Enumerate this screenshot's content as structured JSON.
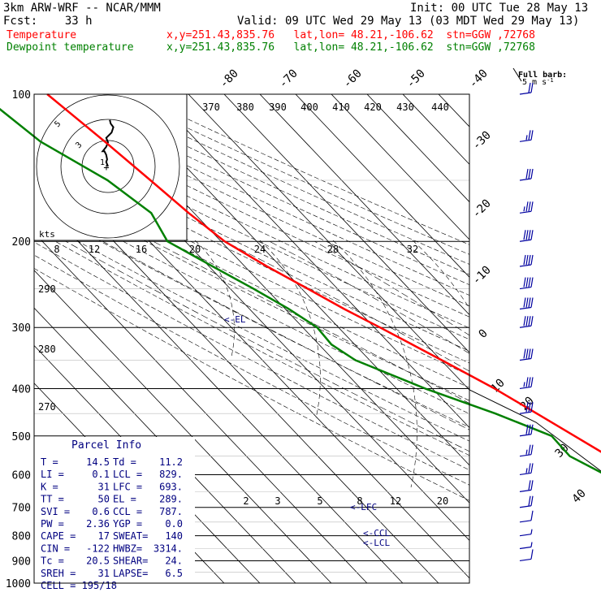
{
  "header": {
    "model": "3km ARW-WRF -- NCAR/MMM",
    "init": "Init: 00 UTC Tue 28 May 13",
    "fcst": "Fcst:    33 h",
    "valid": "Valid: 09 UTC Wed 29 May 13 (03 MDT Wed 29 May 13)",
    "temp_label": "Temperature",
    "temp_info": "x,y=251.43,835.76   lat,lon= 48.21,-106.62  stn=GGW ,72768",
    "dew_label": "Dewpoint temperature",
    "dew_info": "x,y=251.43,835.76   lat,lon= 48.21,-106.62  stn=GGW ,72768"
  },
  "colors": {
    "temperature": "#ff0000",
    "dewpoint": "#008000",
    "axes": "#000000",
    "info": "#000080",
    "wind": "#0000a0"
  },
  "barb_key": {
    "line1": "Full barb:",
    "line2": "5 m s",
    "sup": "-1"
  },
  "parcel_info": {
    "title": "Parcel Info",
    "rows": [
      {
        "l": "T   =",
        "lv": "14.5",
        "r": "Td  =",
        "rv": "11.2"
      },
      {
        "l": "LI  =",
        "lv": "0.1",
        "r": "LCL =",
        "rv": "829."
      },
      {
        "l": "K   =",
        "lv": "31",
        "r": "LFC =",
        "rv": "693."
      },
      {
        "l": "TT  =",
        "lv": "50",
        "r": "EL  =",
        "rv": "289."
      },
      {
        "l": "SVI =",
        "lv": "0.6",
        "r": "CCL =",
        "rv": "787."
      },
      {
        "l": "PW  =",
        "lv": "2.36",
        "r": "YGP =",
        "rv": "0.0"
      },
      {
        "l": "CAPE =",
        "lv": "17",
        "r": "SWEAT=",
        "rv": "140"
      },
      {
        "l": "CIN =",
        "lv": "-122",
        "r": "HWBZ=",
        "rv": "3314."
      },
      {
        "l": "Tc  =",
        "lv": "20.5",
        "r": "SHEAR=",
        "rv": "24."
      },
      {
        "l": "SREH =",
        "lv": "31",
        "r": "LAPSE=",
        "rv": "6.5"
      }
    ],
    "cell": "CELL = 195/18"
  },
  "chart_data": {
    "type": "line",
    "title": "Skew-T log-P sounding",
    "pressure_levels": [
      "100",
      "200",
      "300",
      "400",
      "500",
      "600",
      "700",
      "800",
      "900",
      "1000"
    ],
    "isotherm_labels": [
      "-80",
      "-70",
      "-60",
      "-50",
      "-40",
      "-30",
      "-20",
      "-10",
      "0",
      "10",
      "20",
      "30",
      "40"
    ],
    "theta_labels": [
      "370",
      "380",
      "390",
      "400",
      "410",
      "420",
      "430",
      "440"
    ],
    "theta_left_labels": [
      "290",
      "280",
      "270"
    ],
    "mixing_ratio_labels": [
      "2",
      "3",
      "5",
      "8",
      "12",
      "20"
    ],
    "hodograph": {
      "unit": "kts",
      "ring_labels": [
        "8",
        "12",
        "16",
        "20",
        "24",
        "28",
        "32"
      ],
      "diag_labels": [
        "40",
        "30",
        "20"
      ],
      "inner_labels": [
        "1",
        "3",
        "5"
      ]
    },
    "annotations": {
      "el": "<-EL",
      "lfc": "<-LFC",
      "ccl": "<-CCL",
      "lcl": "<-LCL"
    },
    "series": [
      {
        "name": "Temperature",
        "points": [
          [
            900,
            14.5
          ],
          [
            880,
            14.2
          ],
          [
            850,
            12.5
          ],
          [
            800,
            10.5
          ],
          [
            750,
            9.5
          ],
          [
            700,
            8.4
          ],
          [
            650,
            6.8
          ],
          [
            600,
            4.4
          ],
          [
            550,
            1.3
          ],
          [
            500,
            -2.8
          ],
          [
            450,
            -7.4
          ],
          [
            400,
            -12.6
          ],
          [
            350,
            -19.8
          ],
          [
            300,
            -28.4
          ],
          [
            275,
            -33.5
          ],
          [
            250,
            -38.3
          ],
          [
            225,
            -43.8
          ],
          [
            200,
            -49.0
          ],
          [
            175,
            -51.5
          ],
          [
            150,
            -53.5
          ],
          [
            125,
            -56.0
          ],
          [
            100,
            -59.5
          ]
        ]
      },
      {
        "name": "Dewpoint temperature",
        "points": [
          [
            900,
            11.2
          ],
          [
            850,
            10.1
          ],
          [
            800,
            8.0
          ],
          [
            750,
            3.2
          ],
          [
            700,
            -2.3
          ],
          [
            650,
            -6.5
          ],
          [
            600,
            -4.5
          ],
          [
            550,
            -9.5
          ],
          [
            500,
            -9.2
          ],
          [
            450,
            -19.0
          ],
          [
            400,
            -32.0
          ],
          [
            350,
            -44.0
          ],
          [
            325,
            -46.5
          ],
          [
            300,
            -46.0
          ],
          [
            275,
            -49.0
          ],
          [
            250,
            -53.5
          ],
          [
            225,
            -59.0
          ],
          [
            200,
            -65.0
          ],
          [
            175,
            -62.0
          ],
          [
            150,
            -65.5
          ],
          [
            125,
            -74.0
          ],
          [
            100,
            -78.0
          ]
        ]
      }
    ],
    "hodograph_trace": [
      [
        0,
        0
      ],
      [
        -2,
        -5
      ],
      [
        -1,
        -8
      ],
      [
        -2,
        -13
      ],
      [
        -4,
        -17
      ],
      [
        -6,
        -17
      ],
      [
        -2,
        -22
      ],
      [
        0,
        -27
      ],
      [
        -2,
        -32
      ],
      [
        4,
        -38
      ],
      [
        6,
        -44
      ],
      [
        3,
        -48
      ],
      [
        2,
        -52
      ]
    ],
    "wind_profile": [
      {
        "p": 900,
        "spd": 8
      },
      {
        "p": 850,
        "spd": 6
      },
      {
        "p": 800,
        "spd": 5
      },
      {
        "p": 750,
        "spd": 12
      },
      {
        "p": 700,
        "spd": 18
      },
      {
        "p": 650,
        "spd": 22
      },
      {
        "p": 600,
        "spd": 24
      },
      {
        "p": 550,
        "spd": 26
      },
      {
        "p": 500,
        "spd": 28
      },
      {
        "p": 450,
        "spd": 30
      },
      {
        "p": 400,
        "spd": 34
      },
      {
        "p": 350,
        "spd": 38
      },
      {
        "p": 300,
        "spd": 40
      },
      {
        "p": 275,
        "spd": 40
      },
      {
        "p": 250,
        "spd": 42
      },
      {
        "p": 225,
        "spd": 42
      },
      {
        "p": 200,
        "spd": 38
      },
      {
        "p": 175,
        "spd": 36
      },
      {
        "p": 150,
        "spd": 30
      },
      {
        "p": 125,
        "spd": 26
      },
      {
        "p": 100,
        "spd": 22
      }
    ],
    "ylim": [
      1000,
      100
    ]
  }
}
